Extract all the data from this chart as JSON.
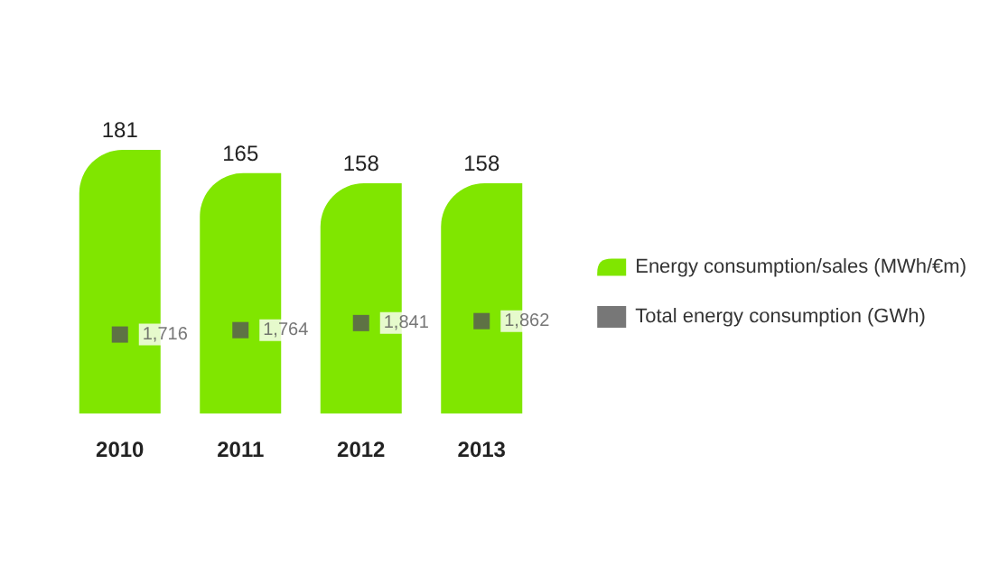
{
  "chart_data": {
    "type": "bar",
    "categories": [
      "2010",
      "2011",
      "2012",
      "2013"
    ],
    "ylim": [
      0,
      181
    ],
    "tick_labels": "x",
    "data_labels": true,
    "legend": "right",
    "series": [
      {
        "name": "Energy consumption/sales (MWh/€m)",
        "color": "#80e600",
        "values": [
          181,
          165,
          158,
          158
        ]
      },
      {
        "name": "Total energy consumption (GWh)",
        "type": "scatter",
        "axis": "y2",
        "marker": "square",
        "color": "#555555",
        "values": [
          1716,
          1764,
          1841,
          1862
        ],
        "value_labels": [
          "1,716",
          "1,764",
          "1,841",
          "1,862"
        ]
      }
    ]
  }
}
